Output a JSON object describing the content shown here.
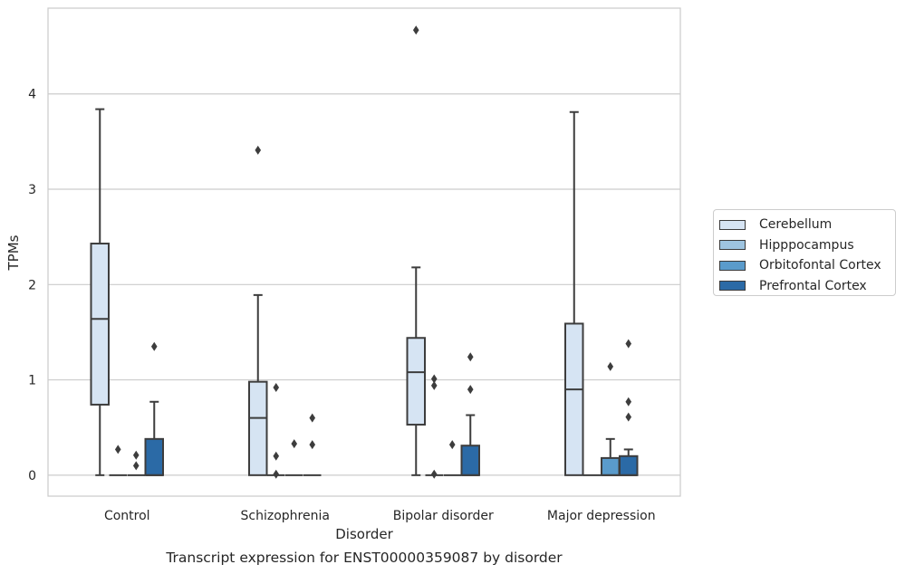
{
  "chart_data": {
    "type": "box",
    "title": "Transcript expression for ENST00000359087 by disorder",
    "xlabel": "Disorder",
    "ylabel": "TPMs",
    "categories": [
      "Control",
      "Schizophrenia",
      "Bipolar disorder",
      "Major depression"
    ],
    "ylim": [
      -0.22,
      4.9
    ],
    "yticks": [
      0,
      1,
      2,
      3,
      4
    ],
    "grid": "horizontal",
    "legend_position": "right",
    "series": [
      {
        "name": "Cerebellum",
        "color": "#d6e4f3",
        "boxes": [
          {
            "whislo": 0.0,
            "q1": 0.74,
            "med": 1.64,
            "q3": 2.43,
            "whishi": 3.84,
            "fliers": []
          },
          {
            "whislo": 0.0,
            "q1": 0.0,
            "med": 0.6,
            "q3": 0.98,
            "whishi": 1.89,
            "fliers": [
              3.41
            ]
          },
          {
            "whislo": 0.0,
            "q1": 0.53,
            "med": 1.08,
            "q3": 1.44,
            "whishi": 2.18,
            "fliers": [
              4.67
            ]
          },
          {
            "whislo": 0.0,
            "q1": 0.0,
            "med": 0.9,
            "q3": 1.59,
            "whishi": 3.81,
            "fliers": []
          }
        ]
      },
      {
        "name": "Hipppocampus",
        "color": "#9ec4e0",
        "boxes": [
          {
            "whislo": 0.0,
            "q1": 0.0,
            "med": 0.0,
            "q3": 0.0,
            "whishi": 0.0,
            "fliers": [
              0.27
            ]
          },
          {
            "whislo": 0.0,
            "q1": 0.0,
            "med": 0.0,
            "q3": 0.0,
            "whishi": 0.0,
            "fliers": [
              0.92,
              0.2,
              0.01
            ]
          },
          {
            "whislo": 0.0,
            "q1": 0.0,
            "med": 0.0,
            "q3": 0.0,
            "whishi": 0.0,
            "fliers": [
              1.01,
              0.94,
              0.01
            ]
          },
          {
            "whislo": 0.0,
            "q1": 0.0,
            "med": 0.0,
            "q3": 0.0,
            "whishi": 0.0,
            "fliers": []
          }
        ]
      },
      {
        "name": "Orbitofontal Cortex",
        "color": "#5a9bcb",
        "boxes": [
          {
            "whislo": 0.0,
            "q1": 0.0,
            "med": 0.0,
            "q3": 0.0,
            "whishi": 0.0,
            "fliers": [
              0.21,
              0.1
            ]
          },
          {
            "whislo": 0.0,
            "q1": 0.0,
            "med": 0.0,
            "q3": 0.0,
            "whishi": 0.0,
            "fliers": [
              0.33
            ]
          },
          {
            "whislo": 0.0,
            "q1": 0.0,
            "med": 0.0,
            "q3": 0.0,
            "whishi": 0.0,
            "fliers": [
              0.32
            ]
          },
          {
            "whislo": 0.0,
            "q1": 0.0,
            "med": 0.0,
            "q3": 0.18,
            "whishi": 0.38,
            "fliers": [
              1.14
            ]
          }
        ]
      },
      {
        "name": "Prefrontal Cortex",
        "color": "#2b6aa6",
        "boxes": [
          {
            "whislo": 0.0,
            "q1": 0.0,
            "med": 0.0,
            "q3": 0.38,
            "whishi": 0.77,
            "fliers": [
              1.35
            ]
          },
          {
            "whislo": 0.0,
            "q1": 0.0,
            "med": 0.0,
            "q3": 0.0,
            "whishi": 0.0,
            "fliers": [
              0.6,
              0.32
            ]
          },
          {
            "whislo": 0.0,
            "q1": 0.0,
            "med": 0.0,
            "q3": 0.31,
            "whishi": 0.63,
            "fliers": [
              1.24,
              0.9
            ]
          },
          {
            "whislo": 0.0,
            "q1": 0.0,
            "med": 0.0,
            "q3": 0.2,
            "whishi": 0.27,
            "fliers": [
              1.38,
              0.77,
              0.61
            ]
          }
        ]
      }
    ]
  }
}
